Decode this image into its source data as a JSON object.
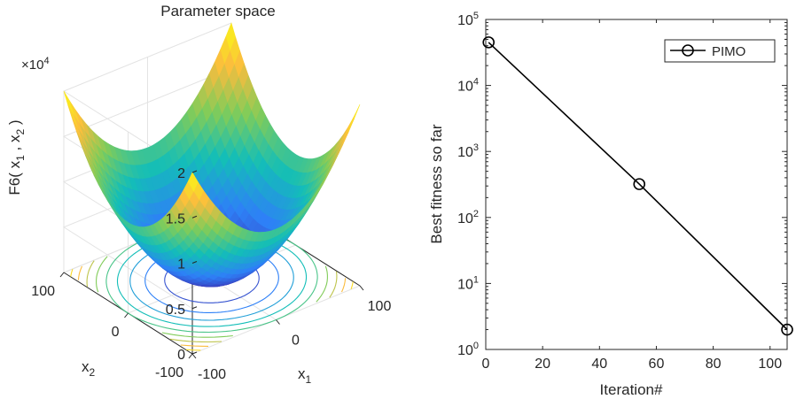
{
  "chart_data": [
    {
      "type": "surface",
      "title": "Parameter space",
      "zlabel": {
        "main": "F6( x",
        "sub1": "1",
        "sep": " ,  x",
        "sub2": "2",
        "end": " )"
      },
      "xlabel": {
        "main": "x",
        "sub": "1"
      },
      "ylabel": {
        "main": "x",
        "sub": "2"
      },
      "xlim": [
        -100,
        100
      ],
      "ylim": [
        -100,
        100
      ],
      "zlim": [
        0,
        20000
      ],
      "x_ticks": [
        "-100",
        "0",
        "100"
      ],
      "y_ticks": [
        "-100",
        "0",
        "100"
      ],
      "z_ticks": [
        "0",
        "0.5",
        "1",
        "1.5",
        "2"
      ],
      "z_multiplier": {
        "base": "×10",
        "exp": "4"
      },
      "grid": true,
      "colormap": [
        "#3e26a8",
        "#2e80f7",
        "#13beb8",
        "#81cc59",
        "#fbbc3e",
        "#f9fb15"
      ],
      "contour_levels": [
        2000,
        4000,
        6000,
        8000,
        10000,
        12000,
        14000,
        16000,
        18000,
        20000
      ]
    },
    {
      "type": "line",
      "xlabel": "Iteration#",
      "ylabel": "Best fitness so far",
      "xlim": [
        0,
        106
      ],
      "ylim": [
        1,
        100000
      ],
      "yscale": "log",
      "x_ticks": [
        "0",
        "20",
        "40",
        "60",
        "80",
        "100"
      ],
      "y_ticks": [
        {
          "base": "10",
          "exp": "0"
        },
        {
          "base": "10",
          "exp": "1"
        },
        {
          "base": "10",
          "exp": "2"
        },
        {
          "base": "10",
          "exp": "3"
        },
        {
          "base": "10",
          "exp": "4"
        },
        {
          "base": "10",
          "exp": "5"
        }
      ],
      "legend_position": "top-right",
      "series": [
        {
          "name": "PIMO",
          "color": "#000000",
          "marker": "circle",
          "x": [
            1,
            54,
            106
          ],
          "y": [
            45000,
            320,
            2
          ]
        }
      ]
    }
  ]
}
